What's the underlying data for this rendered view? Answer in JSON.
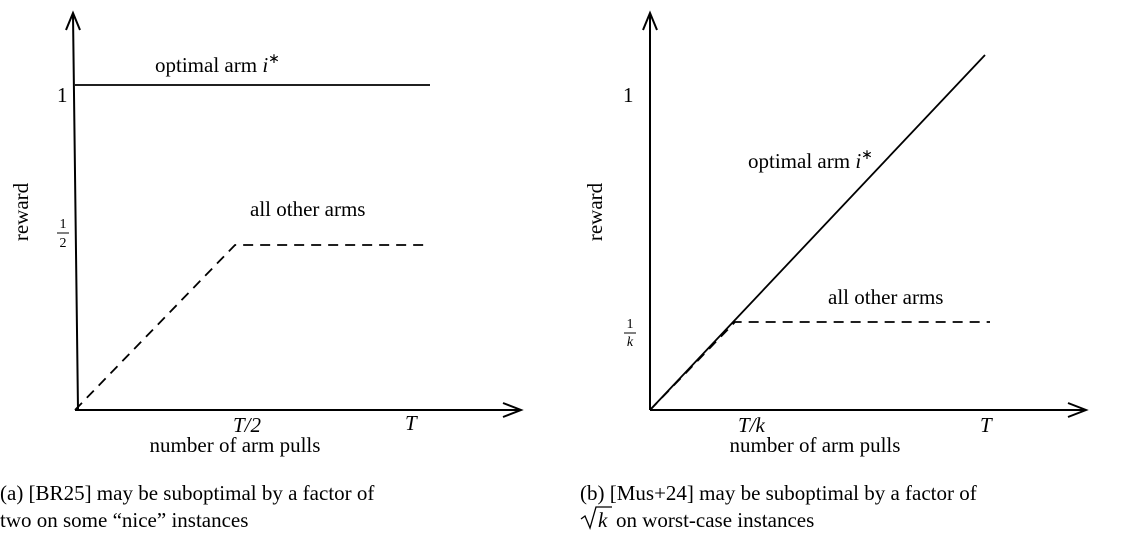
{
  "panels": [
    {
      "line_label": {
        "text": "optimal arm",
        "symbol": "i",
        "sup": "∗"
      },
      "other_label": "all other arms",
      "ylabel": "reward",
      "xlabel": "number of arm pulls",
      "ytick_top": "1",
      "ytick_frac": {
        "numerator": "1",
        "denominator": "2"
      },
      "xtick_mid": "T/2",
      "xtick_end": "T",
      "caption": [
        "(a) [BR25] may be suboptimal by a factor of",
        "two on some “nice” instances"
      ]
    },
    {
      "line_label": {
        "text": "optimal arm",
        "symbol": "i",
        "sup": "∗"
      },
      "other_label": "all other arms",
      "ylabel": "reward",
      "xlabel": "number of arm pulls",
      "ytick_top": "1",
      "ytick_frac": {
        "numerator": "1",
        "denominator": "k"
      },
      "xtick_mid": "T/k",
      "xtick_end": "T",
      "caption": [
        "(b) [Mus+24] may be suboptimal by a factor of",
        "on worst-case instances"
      ],
      "caption_root": "k"
    }
  ]
}
